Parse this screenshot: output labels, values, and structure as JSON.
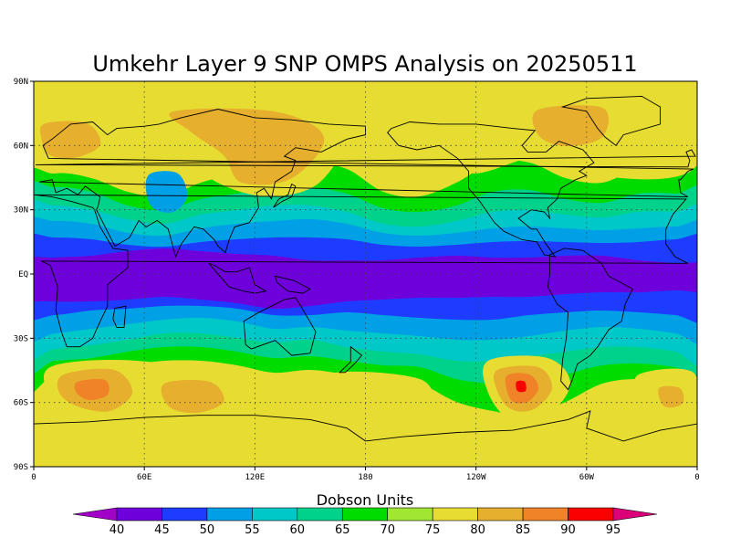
{
  "title": "Umkehr Layer 9 SNP OMPS Analysis on 20250511",
  "colorbar": {
    "title": "Dobson Units",
    "labels": [
      "40",
      "45",
      "50",
      "55",
      "60",
      "65",
      "70",
      "75",
      "80",
      "85",
      "90",
      "95"
    ],
    "colors": [
      "#a000c8",
      "#6e00dc",
      "#1e3cff",
      "#00a0e6",
      "#00c8c8",
      "#00d28c",
      "#00dc00",
      "#a0e632",
      "#e6dc32",
      "#e6af2d",
      "#f08228",
      "#fa0000",
      "#dc0078"
    ]
  },
  "axes": {
    "lat_labels": [
      "90N",
      "60N",
      "30N",
      "EQ",
      "30S",
      "60S",
      "90S"
    ],
    "lon_labels": [
      "0",
      "60E",
      "120E",
      "180",
      "120W",
      "60W",
      "0"
    ]
  },
  "field": {
    "description_levels": "Dobson Units",
    "background_level": 8
  }
}
